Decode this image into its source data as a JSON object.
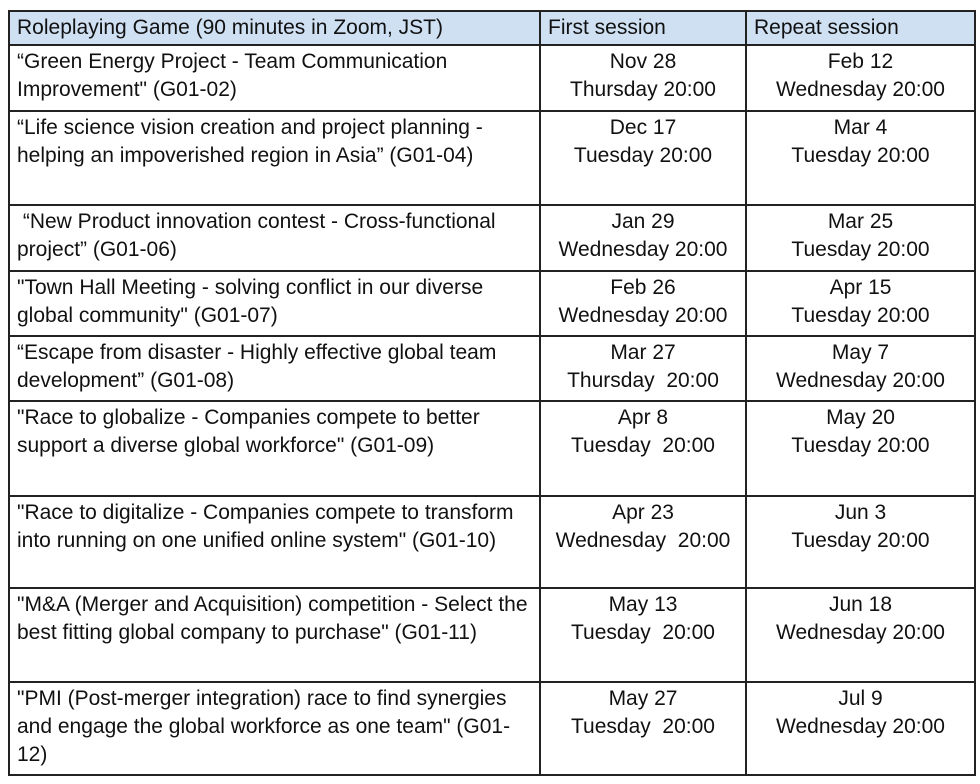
{
  "header": {
    "game": "Roleplaying Game (90 minutes in Zoom, JST)",
    "first": "First session",
    "repeat": "Repeat session"
  },
  "rows": [
    {
      "title": "“Green Energy Project - Team Communication Improvement\" (G01-02)",
      "first_date": "Nov 28",
      "first_time": "Thursday 20:00",
      "repeat_date": "Feb 12",
      "repeat_time": "Wednesday 20:00"
    },
    {
      "title": "“Life science vision creation and project planning - helping an impoverished region in Asia” (G01-04)",
      "first_date": "Dec 17",
      "first_time": "Tuesday 20:00",
      "repeat_date": "Mar 4",
      "repeat_time": "Tuesday 20:00"
    },
    {
      "title": " “New Product innovation contest - Cross-functional project” (G01-06)",
      "first_date": "Jan 29",
      "first_time": "Wednesday 20:00",
      "repeat_date": "Mar 25",
      "repeat_time": "Tuesday 20:00"
    },
    {
      "title": "\"Town Hall Meeting - solving conflict in our diverse global community\" (G01-07)",
      "first_date": "Feb 26",
      "first_time": "Wednesday 20:00",
      "repeat_date": "Apr 15",
      "repeat_time": "Tuesday 20:00"
    },
    {
      "title": "“Escape from disaster - Highly effective global team development” (G01-08)",
      "first_date": "Mar 27",
      "first_time": "Thursday  20:00",
      "repeat_date": "May 7",
      "repeat_time": "Wednesday 20:00"
    },
    {
      "title": "\"Race to globalize - Companies compete to better support a diverse global workforce\" (G01-09)",
      "first_date": "Apr 8",
      "first_time": "Tuesday  20:00",
      "repeat_date": "May 20",
      "repeat_time": "Tuesday 20:00"
    },
    {
      "title": "\"Race to digitalize - Companies compete to transform into running on one unified online system\" (G01-10)",
      "first_date": "Apr 23",
      "first_time": "Wednesday  20:00",
      "repeat_date": "Jun 3",
      "repeat_time": "Tuesday 20:00"
    },
    {
      "title": "\"M&A (Merger and Acquisition) competition - Select the best fitting global company to purchase\" (G01-11)",
      "first_date": "May 13",
      "first_time": "Tuesday  20:00",
      "repeat_date": "Jun 18",
      "repeat_time": "Wednesday 20:00"
    },
    {
      "title": "\"PMI (Post-merger integration) race to find synergies and engage the global workforce as one team\" (G01-12)",
      "first_date": "May 27",
      "first_time": "Tuesday  20:00",
      "repeat_date": "Jul 9",
      "repeat_time": "Wednesday 20:00"
    }
  ],
  "colors": {
    "header_bg": "#cfe0f3",
    "border": "#222222"
  }
}
